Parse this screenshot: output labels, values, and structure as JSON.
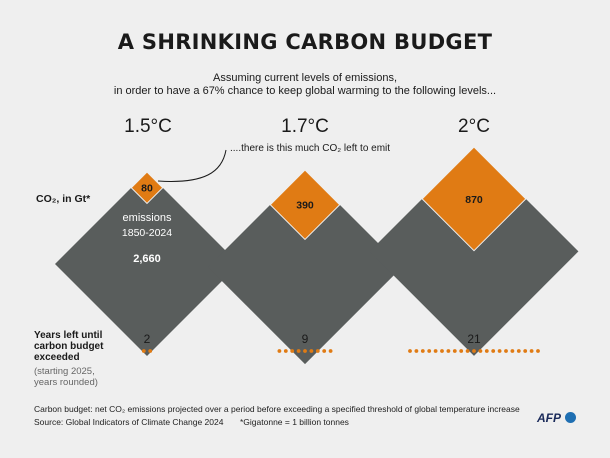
{
  "title": "A SHRINKING CARBON BUDGET",
  "subtitle_line1": "Assuming current levels of emissions,",
  "subtitle_line2": "in order to have a 67% chance to keep global warming to the following levels...",
  "annotation": "....there is this much CO₂ left to emit",
  "unit_label": "CO₂, in Gt*",
  "emissions_label_line1": "emissions",
  "emissions_label_line2": "1850-2024",
  "emissions_value": "2,660",
  "years_label_line1": "Years left until",
  "years_label_line2": "carbon budget",
  "years_label_line3": "exceeded",
  "years_note_line1": "(starting 2025,",
  "years_note_line2": "years rounded)",
  "footer_line1": "Carbon budget: net CO₂ emissions projected over a period before exceeding a specified threshold of global temperature increase",
  "footer_source": "Source: Global Indicators of Climate Change 2024",
  "footer_note": "*Gigatonne = 1 billion tonnes",
  "logo": "AFP",
  "colors": {
    "background": "#efefef",
    "emissions": "#595d5c",
    "budget": "#e07b14",
    "text": "#1a1a1a"
  },
  "chart_data": {
    "type": "area",
    "title": "A SHRINKING CARBON BUDGET",
    "categories": [
      "1.5°C",
      "1.7°C",
      "2°C"
    ],
    "series": [
      {
        "name": "emissions 1850-2024",
        "values": [
          2660,
          2660,
          2660
        ]
      },
      {
        "name": "CO₂ left to emit",
        "values": [
          80,
          390,
          870
        ]
      }
    ],
    "years_left": [
      2,
      9,
      21
    ],
    "budget_labels": [
      "80",
      "390",
      "870"
    ],
    "years_labels": [
      "2",
      "9",
      "21"
    ]
  }
}
